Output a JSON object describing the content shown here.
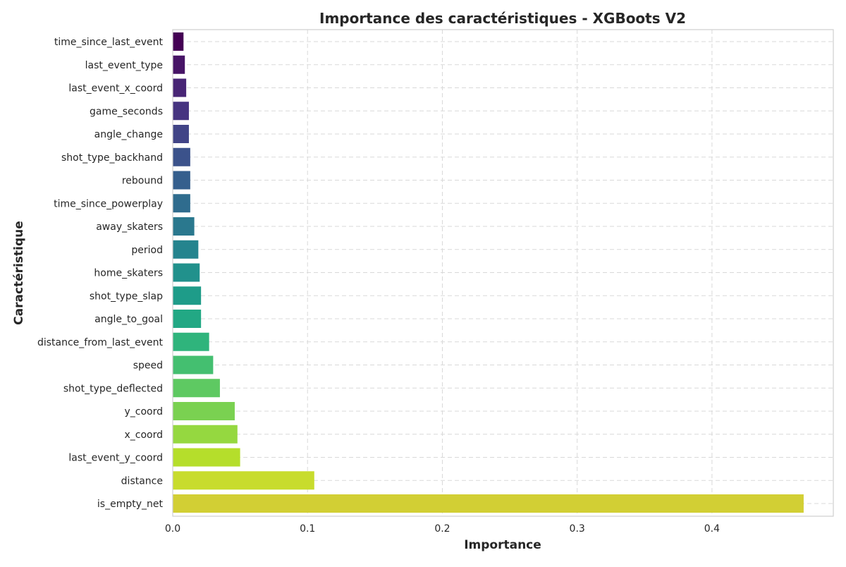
{
  "chart_data": {
    "type": "bar",
    "orientation": "horizontal",
    "title": "Importance des caractéristiques - XGBoots V2",
    "xlabel": "Importance",
    "ylabel": "Caractéristique",
    "xlim": [
      0,
      0.49
    ],
    "xticks": [
      0.0,
      0.1,
      0.2,
      0.3,
      0.4
    ],
    "xtick_labels": [
      "0.0",
      "0.1",
      "0.2",
      "0.3",
      "0.4"
    ],
    "grid": true,
    "legend": "none",
    "categories": [
      "time_since_last_event",
      "last_event_type",
      "last_event_x_coord",
      "game_seconds",
      "angle_change",
      "shot_type_backhand",
      "rebound",
      "time_since_powerplay",
      "away_skaters",
      "period",
      "home_skaters",
      "shot_type_slap",
      "angle_to_goal",
      "distance_from_last_event",
      "speed",
      "shot_type_deflected",
      "y_coord",
      "x_coord",
      "last_event_y_coord",
      "distance",
      "is_empty_net"
    ],
    "values": [
      0.008,
      0.009,
      0.01,
      0.012,
      0.012,
      0.013,
      0.013,
      0.013,
      0.016,
      0.019,
      0.02,
      0.021,
      0.021,
      0.027,
      0.03,
      0.035,
      0.046,
      0.048,
      0.05,
      0.105,
      0.468
    ],
    "colors": [
      "#440154",
      "#471466",
      "#482575",
      "#463480",
      "#414487",
      "#3b528b",
      "#355f8d",
      "#2f6c8e",
      "#2a788e",
      "#25848e",
      "#21918c",
      "#1e9c89",
      "#22a884",
      "#2fb47c",
      "#44bf70",
      "#5ec962",
      "#7ad151",
      "#95d840",
      "#b5de2b",
      "#c8dc2d",
      "#d2cf34"
    ]
  }
}
